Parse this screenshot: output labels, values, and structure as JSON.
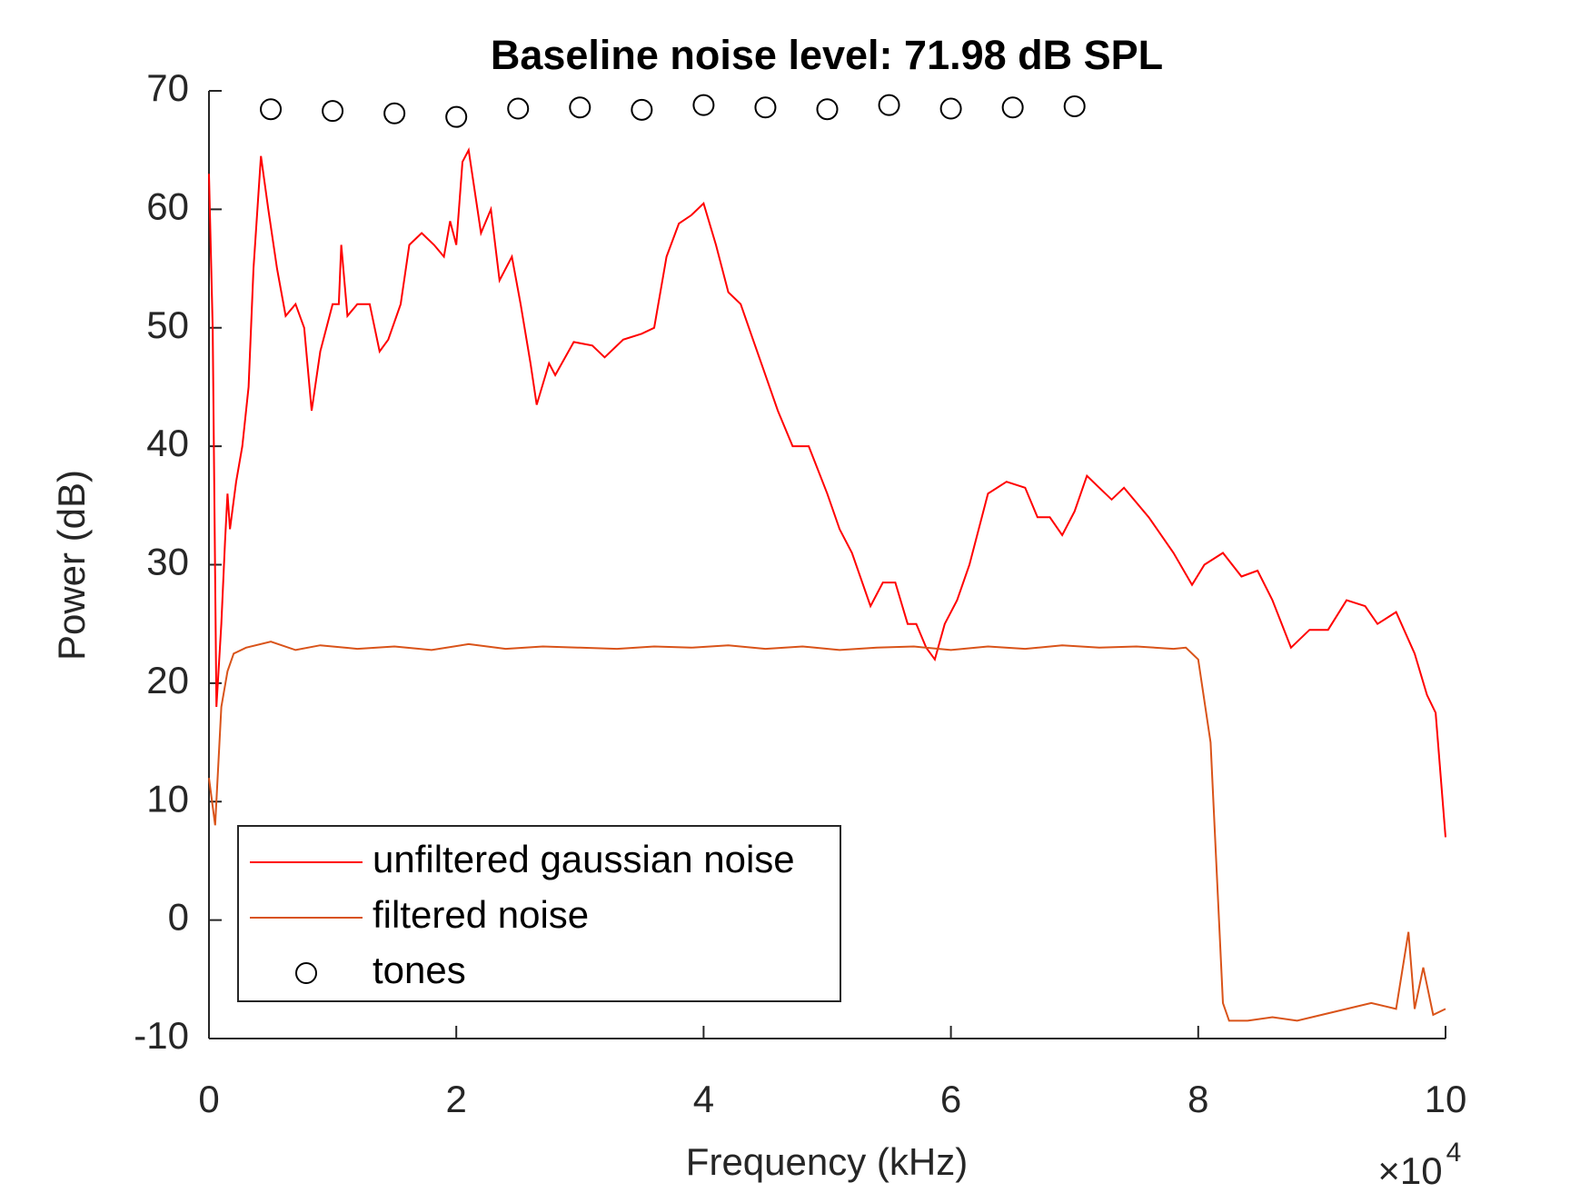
{
  "chart_data": {
    "type": "line",
    "title": "Baseline noise level: 71.98 dB SPL",
    "xlabel": "Frequency (kHz)",
    "ylabel": "Power (dB)",
    "x_multiplier": {
      "base": "×10",
      "exponent": "4"
    },
    "xlim": [
      0,
      10
    ],
    "xticks": [
      0,
      2,
      4,
      6,
      8,
      10
    ],
    "ylim": [
      -10,
      70
    ],
    "yticks": [
      -10,
      0,
      10,
      20,
      30,
      40,
      50,
      60,
      70
    ],
    "legend": "lower left",
    "series": [
      {
        "name": "unfiltered gaussian noise",
        "color": "#ff0000",
        "marker": "none",
        "x": [
          0,
          0.03,
          0.06,
          0.1,
          0.13,
          0.15,
          0.17,
          0.22,
          0.27,
          0.32,
          0.36,
          0.42,
          0.48,
          0.55,
          0.62,
          0.7,
          0.77,
          0.83,
          0.9,
          1.0,
          1.05,
          1.07,
          1.12,
          1.2,
          1.3,
          1.38,
          1.45,
          1.55,
          1.62,
          1.72,
          1.82,
          1.9,
          1.95,
          2.0,
          2.05,
          2.1,
          2.2,
          2.28,
          2.35,
          2.45,
          2.52,
          2.6,
          2.65,
          2.75,
          2.8,
          2.95,
          3.1,
          3.2,
          3.35,
          3.5,
          3.6,
          3.7,
          3.8,
          3.9,
          4.0,
          4.1,
          4.2,
          4.3,
          4.4,
          4.5,
          4.6,
          4.72,
          4.85,
          5.0,
          5.1,
          5.2,
          5.35,
          5.45,
          5.55,
          5.65,
          5.72,
          5.8,
          5.87,
          5.95,
          6.05,
          6.15,
          6.3,
          6.45,
          6.6,
          6.7,
          6.8,
          6.9,
          7.0,
          7.1,
          7.2,
          7.3,
          7.4,
          7.6,
          7.8,
          7.95,
          8.05,
          8.2,
          8.35,
          8.48,
          8.6,
          8.75,
          8.9,
          9.05,
          9.2,
          9.35,
          9.45,
          9.6,
          9.75,
          9.85,
          9.92,
          10.0
        ],
        "values": [
          63,
          50,
          18,
          25,
          32,
          36,
          33,
          37,
          40,
          45,
          55,
          64.5,
          60,
          55,
          51,
          52,
          50,
          43,
          48,
          52,
          52,
          57,
          51,
          52,
          52,
          48,
          49,
          52,
          57,
          58,
          57,
          56,
          59,
          57,
          64,
          65,
          58,
          60,
          54,
          56,
          52,
          47,
          43.5,
          47,
          46,
          48.8,
          48.5,
          47.5,
          49,
          49.5,
          50,
          56,
          58.8,
          59.5,
          60.5,
          57,
          53,
          52,
          49,
          46,
          43,
          40,
          40,
          36,
          33,
          31,
          26.5,
          28.5,
          28.5,
          25,
          25,
          23,
          22,
          25,
          27,
          30,
          36,
          37,
          36.5,
          34,
          34,
          32.5,
          34.5,
          37.5,
          36.5,
          35.5,
          36.5,
          34,
          31,
          28.3,
          30,
          31,
          29,
          29.5,
          27,
          23,
          24.5,
          24.5,
          27,
          26.5,
          25,
          26,
          22.5,
          19,
          17.5,
          7
        ]
      },
      {
        "name": "filtered noise",
        "color": "#d95319",
        "marker": "none",
        "x": [
          0,
          0.05,
          0.1,
          0.15,
          0.2,
          0.3,
          0.5,
          0.7,
          0.9,
          1.2,
          1.5,
          1.8,
          2.1,
          2.4,
          2.7,
          3.0,
          3.3,
          3.6,
          3.9,
          4.2,
          4.5,
          4.8,
          5.1,
          5.4,
          5.7,
          6.0,
          6.3,
          6.6,
          6.9,
          7.2,
          7.5,
          7.8,
          7.9,
          8.0,
          8.1,
          8.2,
          8.25,
          8.4,
          8.6,
          8.8,
          9.0,
          9.2,
          9.4,
          9.6,
          9.7,
          9.75,
          9.82,
          9.9,
          10.0
        ],
        "values": [
          12,
          8,
          18,
          21,
          22.5,
          23,
          23.5,
          22.8,
          23.2,
          22.9,
          23.1,
          22.8,
          23.3,
          22.9,
          23.1,
          23,
          22.9,
          23.1,
          23,
          23.2,
          22.9,
          23.1,
          22.8,
          23,
          23.1,
          22.8,
          23.1,
          22.9,
          23.2,
          23,
          23.1,
          22.9,
          23,
          22,
          15,
          -7,
          -8.5,
          -8.5,
          -8.2,
          -8.5,
          -8,
          -7.5,
          -7,
          -7.5,
          -1,
          -7.5,
          -4,
          -8,
          -7.5
        ]
      },
      {
        "name": "tones",
        "color": "#000000",
        "marker": "circle",
        "x": [
          0.5,
          1,
          1.5,
          2,
          2.5,
          3,
          3.5,
          4,
          4.5,
          5,
          5.5,
          6,
          6.5,
          7
        ],
        "values": [
          68.45,
          68.3,
          68.1,
          67.8,
          68.5,
          68.6,
          68.4,
          68.8,
          68.6,
          68.45,
          68.8,
          68.5,
          68.6,
          68.7
        ]
      }
    ]
  }
}
